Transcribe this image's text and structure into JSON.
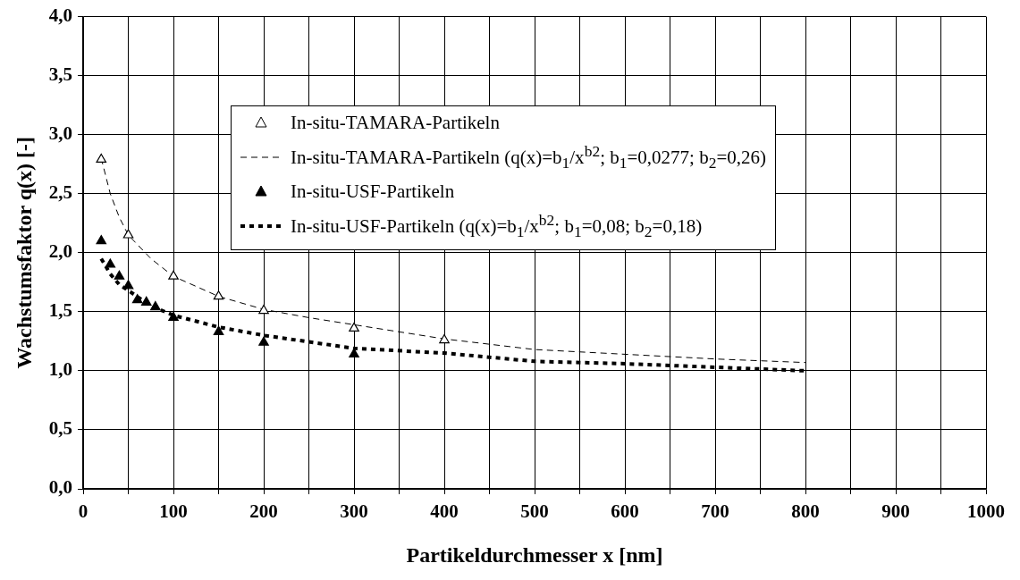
{
  "chart_data": {
    "type": "scatter",
    "xlabel": "Partikeldurchmesser x [nm]",
    "ylabel": "Wachstumsfaktor q(x) [-]",
    "xlim": [
      0,
      1000
    ],
    "xticks": [
      0,
      {
        "value": 50,
        "label": null
      },
      100,
      {
        "value": 150,
        "label": null
      },
      200,
      {
        "value": 250,
        "label": null
      },
      300,
      {
        "value": 350,
        "label": null
      },
      400,
      {
        "value": 450,
        "label": null
      },
      500,
      {
        "value": 550,
        "label": null
      },
      600,
      {
        "value": 650,
        "label": null
      },
      700,
      {
        "value": 750,
        "label": null
      },
      800,
      {
        "value": 850,
        "label": null
      },
      900,
      {
        "value": 950,
        "label": null
      },
      1000
    ],
    "ylim": [
      0,
      4
    ],
    "yticks": [
      {
        "value": 0,
        "label": "0,0"
      },
      {
        "value": 0.5,
        "label": "0,5"
      },
      {
        "value": 1,
        "label": "1,0"
      },
      {
        "value": 1.5,
        "label": "1,5"
      },
      {
        "value": 2,
        "label": "2,0"
      },
      {
        "value": 2.5,
        "label": "2,5"
      },
      {
        "value": 3,
        "label": "3,0"
      },
      {
        "value": 3.5,
        "label": "3,5"
      },
      {
        "value": 4,
        "label": "4,0"
      }
    ],
    "grid": true,
    "legend": "top left",
    "series": [
      {
        "name": "In-situ-TAMARA-Partikeln",
        "marker": "triangle",
        "color": "#ffffff",
        "x": [
          20,
          50,
          100,
          150,
          200,
          300,
          400
        ],
        "values": [
          2.79,
          2.15,
          1.8,
          1.63,
          1.51,
          1.36,
          1.26
        ]
      },
      {
        "name": "In-situ-TAMARA-Partikeln (q(x)=b$_{1}$/x$^{b2}$; b$_{1}$=0,0277; b$_{2}$=0,26)",
        "type": "line",
        "marker": "none",
        "line_style": "dashed",
        "color": "#000000",
        "x": [
          20,
          30,
          40,
          50,
          75,
          100,
          150,
          200,
          250,
          300,
          400,
          500,
          600,
          700,
          800
        ],
        "values": [
          2.8,
          2.5,
          2.3,
          2.15,
          1.95,
          1.8,
          1.63,
          1.52,
          1.45,
          1.39,
          1.27,
          1.18,
          1.14,
          1.1,
          1.07
        ]
      },
      {
        "name": "In-situ-USF-Partikeln",
        "marker": "triangle",
        "color": "#000000",
        "x": [
          20,
          30,
          40,
          50,
          60,
          70,
          80,
          100,
          150,
          200,
          300
        ],
        "values": [
          2.1,
          1.9,
          1.8,
          1.72,
          1.6,
          1.58,
          1.54,
          1.45,
          1.33,
          1.24,
          1.14
        ]
      },
      {
        "name": "In-situ-USF-Partikeln (q(x)=b$_{1}$/x$^{b2}$; b$_{1}$=0,08; b$_{2}$=0,18)",
        "type": "line",
        "marker": "none",
        "line_style": "dotted",
        "color": "#000000",
        "x": [
          20,
          30,
          40,
          50,
          75,
          100,
          150,
          200,
          300,
          400,
          500,
          600,
          700,
          800
        ],
        "values": [
          1.95,
          1.82,
          1.73,
          1.68,
          1.55,
          1.47,
          1.37,
          1.3,
          1.19,
          1.15,
          1.08,
          1.06,
          1.03,
          1.0
        ]
      }
    ]
  }
}
